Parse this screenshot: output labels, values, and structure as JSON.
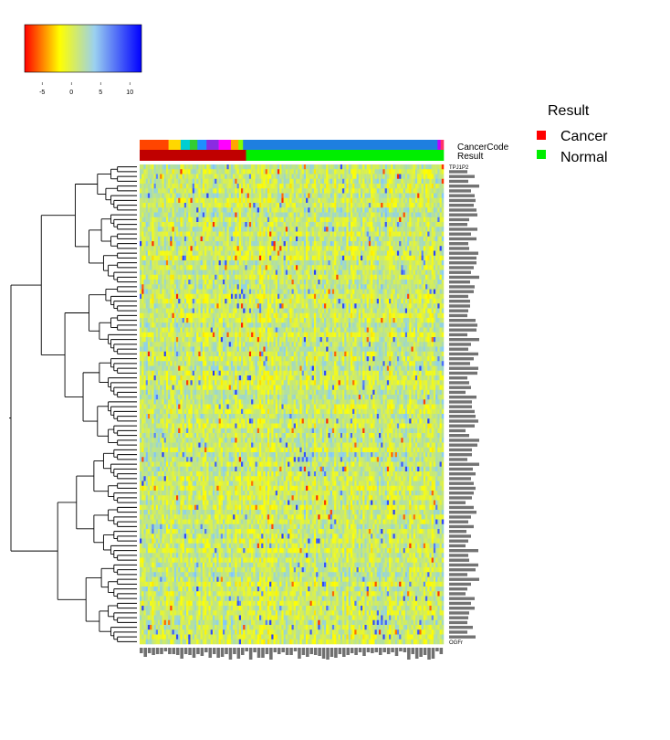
{
  "chart_data": {
    "type": "heatmap",
    "color_scale": {
      "colors": [
        "#ff0000",
        "#ffff00",
        "#87cefa",
        "#0000ff"
      ],
      "domain": [
        -8,
        0,
        5,
        12
      ],
      "ticks": [
        -5,
        0,
        5,
        10
      ]
    },
    "annotation_rows": [
      "CancerCode",
      "Result"
    ],
    "legend": {
      "title": "Result",
      "items": [
        {
          "label": "Cancer",
          "color": "#ff0000"
        },
        {
          "label": "Normal",
          "color": "#00ee00"
        }
      ]
    },
    "cancer_code_blocks": [
      {
        "color": "#ff4500",
        "span": 0.095
      },
      {
        "color": "#ffd700",
        "span": 0.04
      },
      {
        "color": "#00ced1",
        "span": 0.03
      },
      {
        "color": "#32cd32",
        "span": 0.025
      },
      {
        "color": "#1e90ff",
        "span": 0.03
      },
      {
        "color": "#8a2be2",
        "span": 0.04
      },
      {
        "color": "#ff00ff",
        "span": 0.04
      },
      {
        "color": "#ffa500",
        "span": 0.025
      },
      {
        "color": "#7fff00",
        "span": 0.015
      },
      {
        "color": "#1e7fe0",
        "span": 0.64
      },
      {
        "color": "#c000ff",
        "span": 0.01
      },
      {
        "color": "#ff3366",
        "span": 0.01
      }
    ],
    "result_blocks": [
      {
        "class": "Cancer",
        "color": "#c00000",
        "span": 0.35
      },
      {
        "class": "Normal",
        "color": "#00ee00",
        "span": 0.65
      }
    ],
    "n_rows": 100,
    "n_cols": 150,
    "row_labels": [
      "TPJ1P2",
      "",
      "",
      "",
      "",
      "",
      "",
      "",
      "",
      "",
      "",
      "",
      "",
      "",
      "",
      "",
      "",
      "",
      "",
      "",
      "",
      "",
      "",
      "",
      "",
      "",
      "",
      "",
      "",
      "",
      "",
      "",
      "",
      "",
      "",
      "",
      "",
      "",
      "",
      "",
      "",
      "",
      "",
      "",
      "",
      "",
      "",
      "",
      "",
      "",
      "",
      "",
      "",
      "",
      "",
      "",
      "",
      "",
      "",
      "",
      "",
      "",
      "",
      "",
      "",
      "",
      "",
      "",
      "",
      "",
      "",
      "",
      "",
      "",
      "",
      "",
      "",
      "",
      "",
      "",
      "",
      "",
      "",
      "",
      "",
      "",
      "",
      "",
      "",
      "",
      "",
      "",
      "",
      "",
      "",
      "",
      "",
      "",
      "",
      "OGFr"
    ]
  }
}
